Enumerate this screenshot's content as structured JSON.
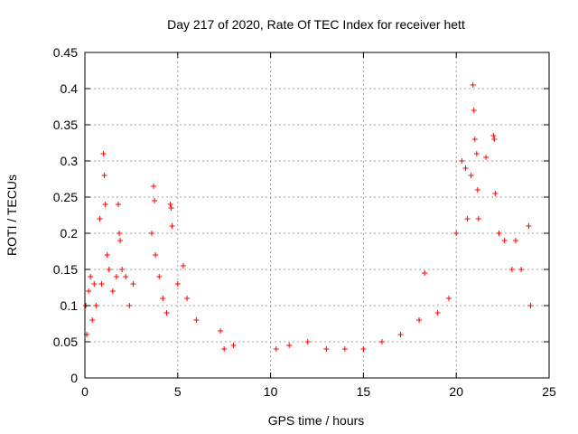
{
  "chart_data": {
    "type": "scatter",
    "title": "Day 217 of 2020, Rate Of TEC Index for receiver hett",
    "xlabel": "GPS time / hours",
    "ylabel": "ROTI / TECUs",
    "xlim": [
      0,
      25
    ],
    "ylim": [
      0,
      0.45
    ],
    "x_ticks": [
      0,
      5,
      10,
      15,
      20,
      25
    ],
    "x_tick_labels": [
      "0",
      "5",
      "10",
      "15",
      "20",
      "25"
    ],
    "y_ticks": [
      0,
      0.05,
      0.1,
      0.15,
      0.2,
      0.25,
      0.3,
      0.35,
      0.4,
      0.45
    ],
    "y_tick_labels": [
      "0",
      "0.05",
      "0.1",
      "0.15",
      "0.2",
      "0.25",
      "0.3",
      "0.35",
      "0.4",
      "0.45"
    ],
    "grid": true,
    "marker": "+",
    "colors": {
      "points": "#ff0000",
      "grid": "#a0a0a0",
      "axes": "#000000"
    },
    "series": [
      {
        "points": [
          [
            0.05,
            0.1
          ],
          [
            0.1,
            0.06
          ],
          [
            0.2,
            0.12
          ],
          [
            0.3,
            0.14
          ],
          [
            0.4,
            0.08
          ],
          [
            0.5,
            0.13
          ],
          [
            0.6,
            0.1
          ],
          [
            0.8,
            0.22
          ],
          [
            0.9,
            0.13
          ],
          [
            1.0,
            0.31
          ],
          [
            1.05,
            0.28
          ],
          [
            1.1,
            0.24
          ],
          [
            1.2,
            0.17
          ],
          [
            1.3,
            0.15
          ],
          [
            1.5,
            0.12
          ],
          [
            1.7,
            0.14
          ],
          [
            1.8,
            0.24
          ],
          [
            1.85,
            0.2
          ],
          [
            1.9,
            0.19
          ],
          [
            2.0,
            0.15
          ],
          [
            2.2,
            0.14
          ],
          [
            2.4,
            0.1
          ],
          [
            2.6,
            0.13
          ],
          [
            3.6,
            0.2
          ],
          [
            3.7,
            0.265
          ],
          [
            3.75,
            0.245
          ],
          [
            3.8,
            0.17
          ],
          [
            4.0,
            0.14
          ],
          [
            4.2,
            0.11
          ],
          [
            4.4,
            0.09
          ],
          [
            4.6,
            0.24
          ],
          [
            4.65,
            0.235
          ],
          [
            4.7,
            0.21
          ],
          [
            5.0,
            0.13
          ],
          [
            5.3,
            0.155
          ],
          [
            5.5,
            0.11
          ],
          [
            6.0,
            0.08
          ],
          [
            7.3,
            0.065
          ],
          [
            7.5,
            0.04
          ],
          [
            8.0,
            0.045
          ],
          [
            10.3,
            0.04
          ],
          [
            11.0,
            0.045
          ],
          [
            12.0,
            0.05
          ],
          [
            13.0,
            0.04
          ],
          [
            14.0,
            0.04
          ],
          [
            15.0,
            0.04
          ],
          [
            16.0,
            0.05
          ],
          [
            17.0,
            0.06
          ],
          [
            18.0,
            0.08
          ],
          [
            18.3,
            0.145
          ],
          [
            19.0,
            0.09
          ],
          [
            19.6,
            0.11
          ],
          [
            20.0,
            0.2
          ],
          [
            20.3,
            0.3
          ],
          [
            20.5,
            0.29
          ],
          [
            20.6,
            0.22
          ],
          [
            20.8,
            0.28
          ],
          [
            20.9,
            0.405
          ],
          [
            20.95,
            0.37
          ],
          [
            21.0,
            0.33
          ],
          [
            21.1,
            0.31
          ],
          [
            21.15,
            0.26
          ],
          [
            21.2,
            0.22
          ],
          [
            21.6,
            0.305
          ],
          [
            22.0,
            0.335
          ],
          [
            22.05,
            0.33
          ],
          [
            22.1,
            0.255
          ],
          [
            22.3,
            0.2
          ],
          [
            22.6,
            0.19
          ],
          [
            23.0,
            0.15
          ],
          [
            23.2,
            0.19
          ],
          [
            23.5,
            0.15
          ],
          [
            23.9,
            0.21
          ],
          [
            24.0,
            0.1
          ]
        ]
      }
    ]
  }
}
